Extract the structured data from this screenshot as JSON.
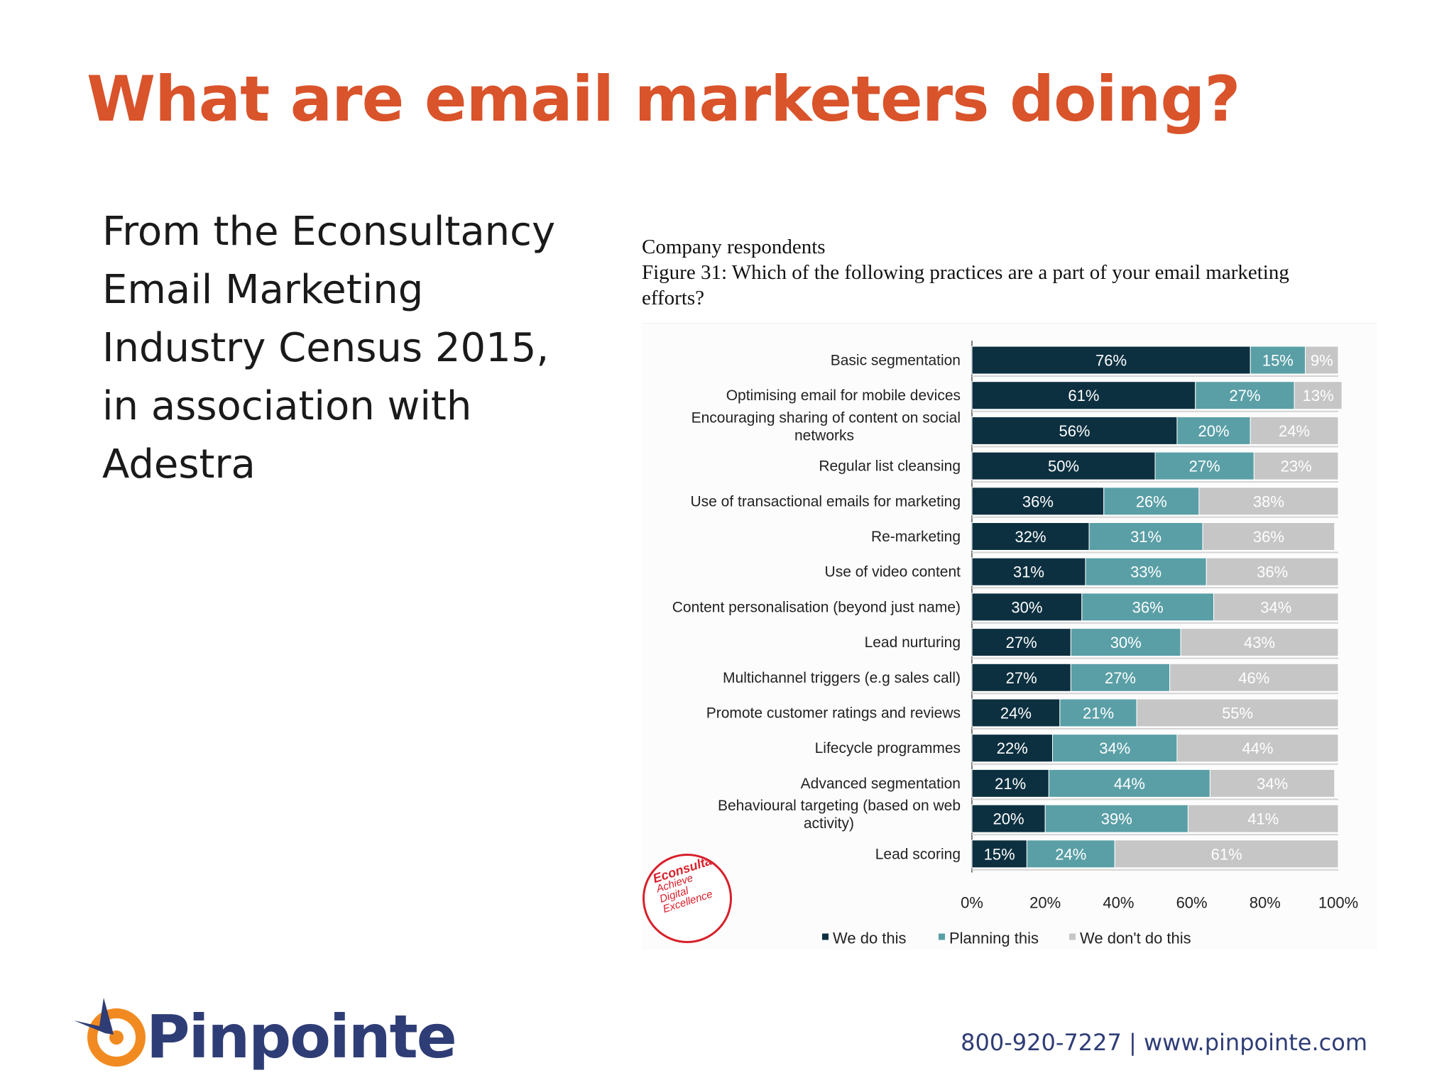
{
  "slide": {
    "title": "What are email marketers doing?",
    "intro_lines": [
      "From the Econsultancy",
      "Email Marketing",
      "Industry Census 2015,",
      "in association with",
      "Adestra"
    ]
  },
  "figure": {
    "caption_line1": "Company respondents",
    "caption_line2": "Figure 31: Which of the following practices are a part of your email marketing",
    "caption_line3": "efforts?"
  },
  "stamp": {
    "brand": "Econsultancy",
    "tagline_1": "Achieve",
    "tagline_2": "Digital",
    "tagline_3": "Excellence"
  },
  "footer": {
    "logo_text": "Pinpointe",
    "contact": "800-920-7227 | www.pinpointe.com"
  },
  "colors": {
    "title": "#d9532b",
    "we_do": "#0d3040",
    "planning": "#5a9fa6",
    "dont_do": "#c6c6c6",
    "logo_navy": "#2f3d76",
    "logo_orange": "#f18b21"
  },
  "chart_data": {
    "type": "bar",
    "orientation": "horizontal",
    "stacked": true,
    "categories": [
      "Basic segmentation",
      "Optimising email for mobile devices",
      "Encouraging sharing of content on social networks",
      "Regular list cleansing",
      "Use of transactional emails for marketing",
      "Re-marketing",
      "Use of video content",
      "Content personalisation (beyond just name)",
      "Lead nurturing",
      "Multichannel triggers (e.g sales call)",
      "Promote customer ratings and reviews",
      "Lifecycle programmes",
      "Advanced segmentation",
      "Behavioural targeting (based on web activity)",
      "Lead scoring"
    ],
    "series": [
      {
        "name": "We do this",
        "values": [
          76,
          61,
          56,
          50,
          36,
          32,
          31,
          30,
          27,
          27,
          24,
          22,
          21,
          20,
          15
        ]
      },
      {
        "name": "Planning this",
        "values": [
          15,
          27,
          20,
          27,
          26,
          31,
          33,
          36,
          30,
          27,
          21,
          34,
          44,
          39,
          24
        ]
      },
      {
        "name": "We don't do this",
        "values": [
          9,
          13,
          24,
          23,
          38,
          36,
          36,
          34,
          43,
          46,
          55,
          44,
          34,
          41,
          61
        ]
      }
    ],
    "xlim": [
      0,
      100
    ],
    "x_ticks": [
      "0%",
      "20%",
      "40%",
      "60%",
      "80%",
      "100%"
    ],
    "value_suffix": "%",
    "legend_position": "bottom",
    "grid": false
  }
}
